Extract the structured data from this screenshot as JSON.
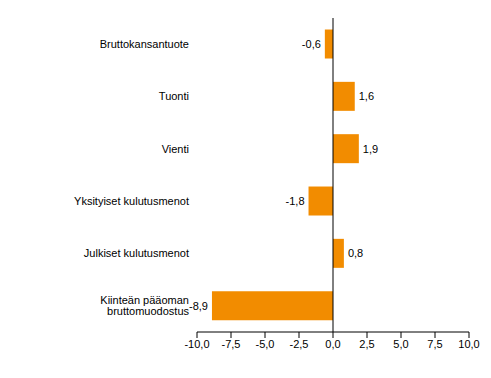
{
  "chart_data": {
    "type": "bar",
    "orientation": "horizontal",
    "categories": [
      "Bruttokansantuote",
      "Tuonti",
      "Vienti",
      "Yksityiset kulutusmenot",
      "Julkiset kulutusmenot",
      "Kiinteän pääoman bruttomuodostus"
    ],
    "values": [
      -0.6,
      1.6,
      1.9,
      -1.8,
      0.8,
      -8.9
    ],
    "value_labels": [
      "-0,6",
      "1,6",
      "1,9",
      "-1,8",
      "0,8",
      "-8,9"
    ],
    "data_labels": true,
    "color": "#f28c00",
    "xlim": [
      -10,
      10
    ],
    "xticks": [
      {
        "value": -10,
        "label": "-10,0"
      },
      {
        "value": -7.5,
        "label": "-7,5"
      },
      {
        "value": -5,
        "label": "-5,0"
      },
      {
        "value": -2.5,
        "label": "-2,5"
      },
      {
        "value": 0,
        "label": "0,0"
      },
      {
        "value": 2.5,
        "label": "2,5"
      },
      {
        "value": 5,
        "label": "5,0"
      },
      {
        "value": 7.5,
        "label": "7,5"
      },
      {
        "value": 10,
        "label": "10,0"
      }
    ],
    "grid": false
  }
}
